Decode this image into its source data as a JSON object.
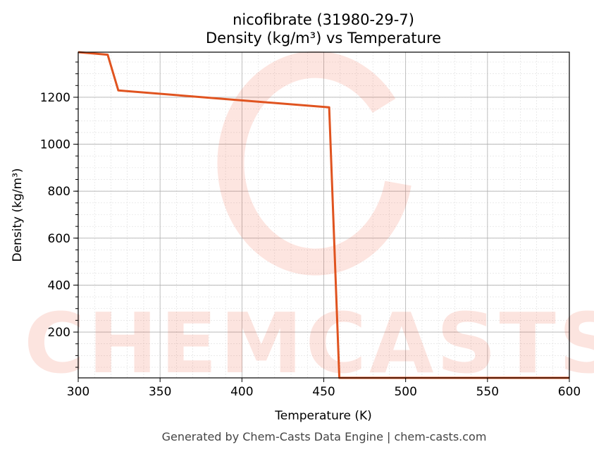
{
  "chart_data": {
    "type": "line",
    "title": "nicofibrate (31980-29-7)",
    "subtitle": "Density (kg/m³) vs Temperature",
    "xlabel": "Temperature (K)",
    "ylabel": "Density (kg/m³)",
    "xlim": [
      300,
      600
    ],
    "ylim": [
      5,
      1392
    ],
    "xticks": [
      300,
      350,
      400,
      450,
      500,
      550,
      600
    ],
    "yticks": [
      200,
      400,
      600,
      800,
      1000,
      1200
    ],
    "grid": true,
    "series": [
      {
        "name": "Density",
        "color": "#e0531f",
        "x": [
          300,
          318,
          324.5,
          453.3,
          459.5,
          600
        ],
        "y": [
          1392,
          1381,
          1229,
          1157,
          5,
          5
        ]
      }
    ],
    "watermark": "CHEMCASTS",
    "footer": "Generated by Chem-Casts Data Engine | chem-casts.com"
  }
}
